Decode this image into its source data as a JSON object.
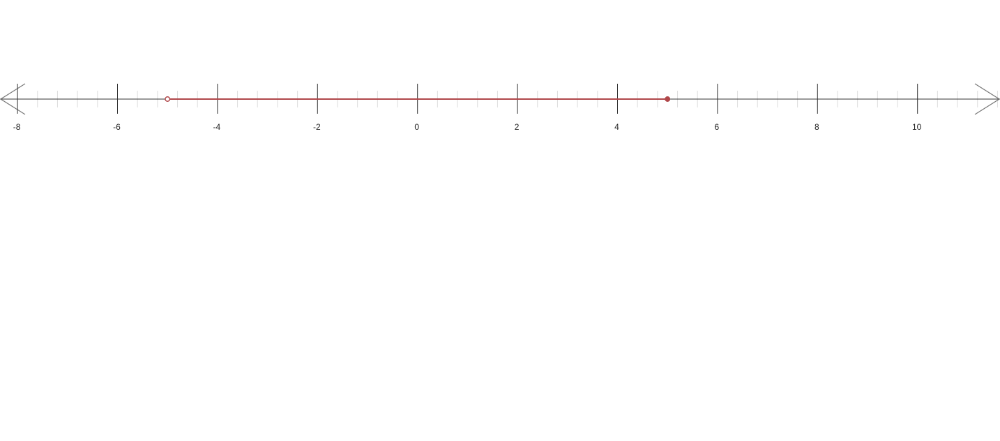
{
  "chart_data": {
    "type": "number-line",
    "xlim": [
      -8.35,
      11.65
    ],
    "major_ticks": [
      -8,
      -6,
      -4,
      -2,
      0,
      2,
      4,
      6,
      8,
      10
    ],
    "tick_labels": [
      "-8",
      "-6",
      "-4",
      "-2",
      "0",
      "2",
      "4",
      "6",
      "8",
      "10"
    ],
    "minor_tick_step": 0.4,
    "arrows": "both",
    "interval": {
      "start": -5,
      "end": 5,
      "start_closed": false,
      "end_closed": true,
      "color": "#b0474a"
    },
    "axis_color": "#333333",
    "minor_tick_color": "#dddddd"
  }
}
